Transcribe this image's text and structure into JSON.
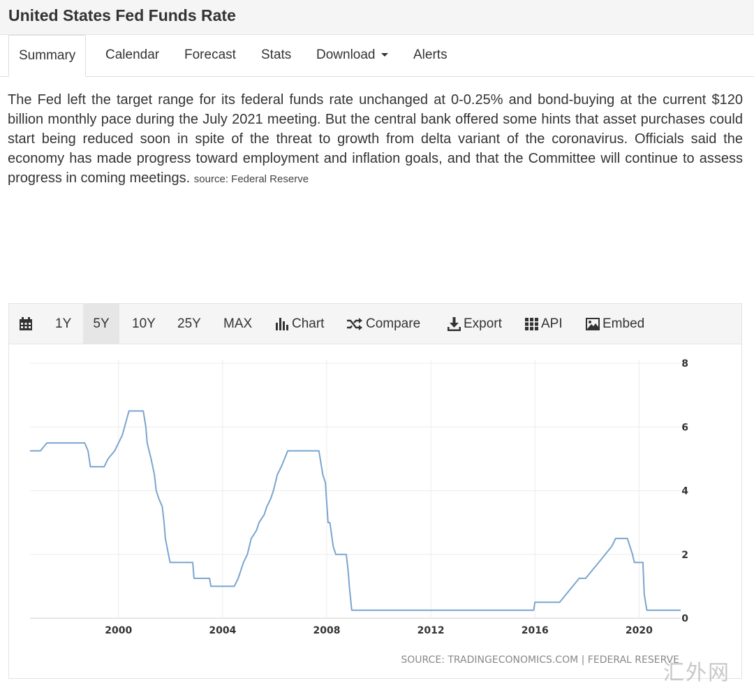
{
  "page": {
    "title": "United States Fed Funds Rate",
    "tabs": [
      {
        "label": "Summary"
      },
      {
        "label": "Calendar"
      },
      {
        "label": "Forecast"
      },
      {
        "label": "Stats"
      },
      {
        "label": "Download"
      },
      {
        "label": "Alerts"
      }
    ],
    "description": "The Fed left the target range for its federal funds rate unchanged at 0-0.25% and bond-buying at the current $120 billion monthly pace during the July 2021 meeting. But the central bank offered some hints that asset purchases could start being reduced soon in spite of the threat to growth from delta variant of the coronavirus. Officials said the economy has made progress toward employment and inflation goals, and that the Committee will continue to assess progress in coming meetings.",
    "description_source": "source: Federal Reserve",
    "watermark": "汇外网"
  },
  "toolbar": {
    "calendar_icon": "calendar-icon",
    "ranges": [
      "1Y",
      "5Y",
      "10Y",
      "25Y",
      "MAX"
    ],
    "active_range": "5Y",
    "chart_label": "Chart",
    "compare_label": "Compare",
    "export_label": "Export",
    "api_label": "API",
    "embed_label": "Embed"
  },
  "chart_data": {
    "type": "line",
    "source_label": "SOURCE: TRADINGECONOMICS.COM | FEDERAL RESERVE",
    "line_color": "#7aa5cf",
    "grid": true,
    "xlim": [
      1996.6,
      2021.6
    ],
    "ylim": [
      0,
      8
    ],
    "x_ticks": [
      2000,
      2004,
      2008,
      2012,
      2016,
      2020
    ],
    "y_ticks": [
      0,
      2,
      4,
      6,
      8
    ],
    "series": [
      {
        "points": [
          [
            1996.6,
            5.25
          ],
          [
            1997.0,
            5.25
          ],
          [
            1997.25,
            5.5
          ],
          [
            1998.7,
            5.5
          ],
          [
            1998.83,
            5.25
          ],
          [
            1998.92,
            4.75
          ],
          [
            1999.45,
            4.75
          ],
          [
            1999.6,
            5.0
          ],
          [
            1999.85,
            5.25
          ],
          [
            2000.0,
            5.5
          ],
          [
            2000.15,
            5.75
          ],
          [
            2000.4,
            6.5
          ],
          [
            2000.95,
            6.5
          ],
          [
            2001.05,
            6.0
          ],
          [
            2001.1,
            5.5
          ],
          [
            2001.25,
            5.0
          ],
          [
            2001.38,
            4.5
          ],
          [
            2001.45,
            4.0
          ],
          [
            2001.55,
            3.75
          ],
          [
            2001.68,
            3.5
          ],
          [
            2001.75,
            3.0
          ],
          [
            2001.8,
            2.5
          ],
          [
            2001.92,
            2.0
          ],
          [
            2001.98,
            1.75
          ],
          [
            2002.85,
            1.75
          ],
          [
            2002.9,
            1.25
          ],
          [
            2003.5,
            1.25
          ],
          [
            2003.55,
            1.0
          ],
          [
            2004.45,
            1.0
          ],
          [
            2004.6,
            1.25
          ],
          [
            2004.7,
            1.5
          ],
          [
            2004.8,
            1.75
          ],
          [
            2004.95,
            2.0
          ],
          [
            2005.1,
            2.5
          ],
          [
            2005.3,
            2.75
          ],
          [
            2005.4,
            3.0
          ],
          [
            2005.6,
            3.25
          ],
          [
            2005.7,
            3.5
          ],
          [
            2005.85,
            3.75
          ],
          [
            2005.95,
            4.0
          ],
          [
            2006.1,
            4.5
          ],
          [
            2006.25,
            4.75
          ],
          [
            2006.38,
            5.0
          ],
          [
            2006.5,
            5.25
          ],
          [
            2007.7,
            5.25
          ],
          [
            2007.8,
            4.75
          ],
          [
            2007.85,
            4.5
          ],
          [
            2007.95,
            4.25
          ],
          [
            2008.05,
            3.0
          ],
          [
            2008.12,
            3.0
          ],
          [
            2008.25,
            2.25
          ],
          [
            2008.35,
            2.0
          ],
          [
            2008.75,
            2.0
          ],
          [
            2008.82,
            1.5
          ],
          [
            2008.87,
            1.0
          ],
          [
            2008.96,
            0.25
          ],
          [
            2015.95,
            0.25
          ],
          [
            2016.0,
            0.5
          ],
          [
            2016.95,
            0.5
          ],
          [
            2017.2,
            0.75
          ],
          [
            2017.45,
            1.0
          ],
          [
            2017.7,
            1.25
          ],
          [
            2017.95,
            1.25
          ],
          [
            2018.2,
            1.5
          ],
          [
            2018.45,
            1.75
          ],
          [
            2018.7,
            2.0
          ],
          [
            2018.95,
            2.25
          ],
          [
            2019.1,
            2.5
          ],
          [
            2019.55,
            2.5
          ],
          [
            2019.65,
            2.25
          ],
          [
            2019.75,
            2.0
          ],
          [
            2019.82,
            1.75
          ],
          [
            2020.15,
            1.75
          ],
          [
            2020.2,
            0.75
          ],
          [
            2020.3,
            0.25
          ],
          [
            2021.6,
            0.25
          ]
        ]
      }
    ]
  }
}
